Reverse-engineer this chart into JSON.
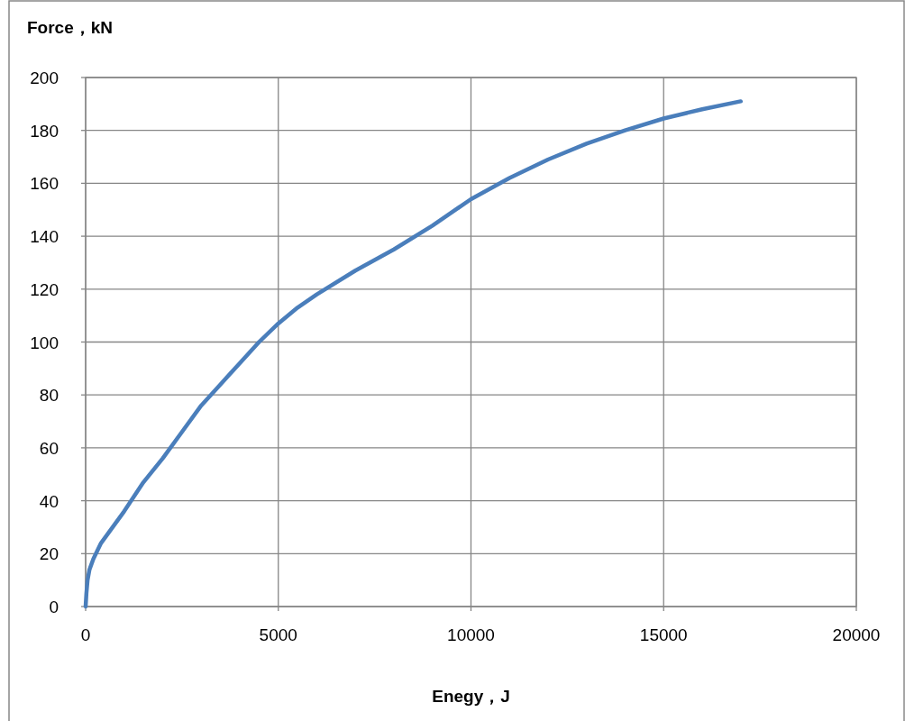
{
  "chart_data": {
    "type": "line",
    "xlabel": "Enegy，J",
    "ylabel": "Force，kN",
    "x": [
      0,
      20,
      50,
      100,
      200,
      400,
      600,
      1000,
      1500,
      2000,
      2500,
      3000,
      3500,
      4000,
      4500,
      5000,
      5500,
      6000,
      7000,
      8000,
      9000,
      10000,
      11000,
      12000,
      13000,
      14000,
      15000,
      16000,
      17000
    ],
    "series": [
      {
        "color": "#4a7ebb",
        "values": [
          0,
          5,
          10,
          14,
          18,
          24,
          28,
          36,
          47,
          56,
          66,
          76,
          84,
          92,
          100,
          107,
          113,
          118,
          127,
          135,
          144,
          154,
          162,
          169,
          175,
          180,
          184.5,
          188,
          191
        ]
      }
    ],
    "xlim": [
      0,
      20000
    ],
    "xticks": [
      0,
      5000,
      10000,
      15000,
      20000
    ],
    "ylim": [
      0,
      200
    ],
    "yticks": [
      0,
      20,
      40,
      60,
      80,
      100,
      120,
      140,
      160,
      180,
      200
    ],
    "grid": true
  }
}
